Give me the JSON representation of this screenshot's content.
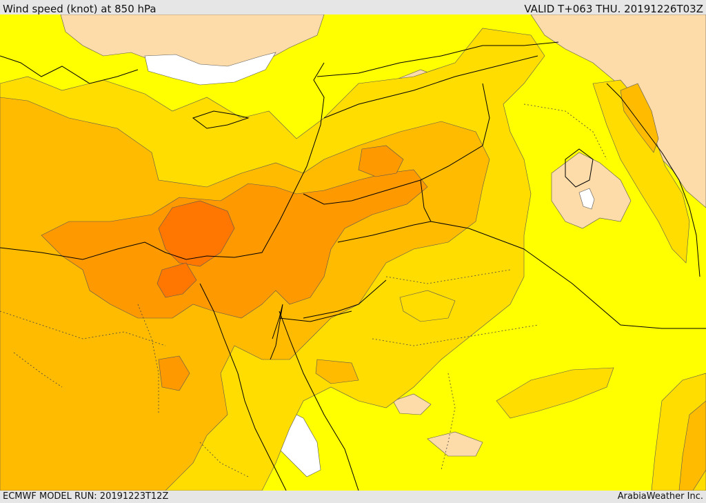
{
  "header": {
    "title": "Wind speed (knot) at 850 hPa",
    "valid": "VALID T+063 THU. 20191226T03Z"
  },
  "footer": {
    "model_run": "ECMWF MODEL RUN: 20191223T12Z",
    "credit": "ArabiaWeather Inc."
  },
  "colors": {
    "calm_white": "#ffffff",
    "light_tan": "#fddcaa",
    "yellow": "#ffff00",
    "gold": "#ffdd00",
    "amber": "#ffbb00",
    "orange": "#ff9900",
    "deep_orange": "#ff7700"
  }
}
